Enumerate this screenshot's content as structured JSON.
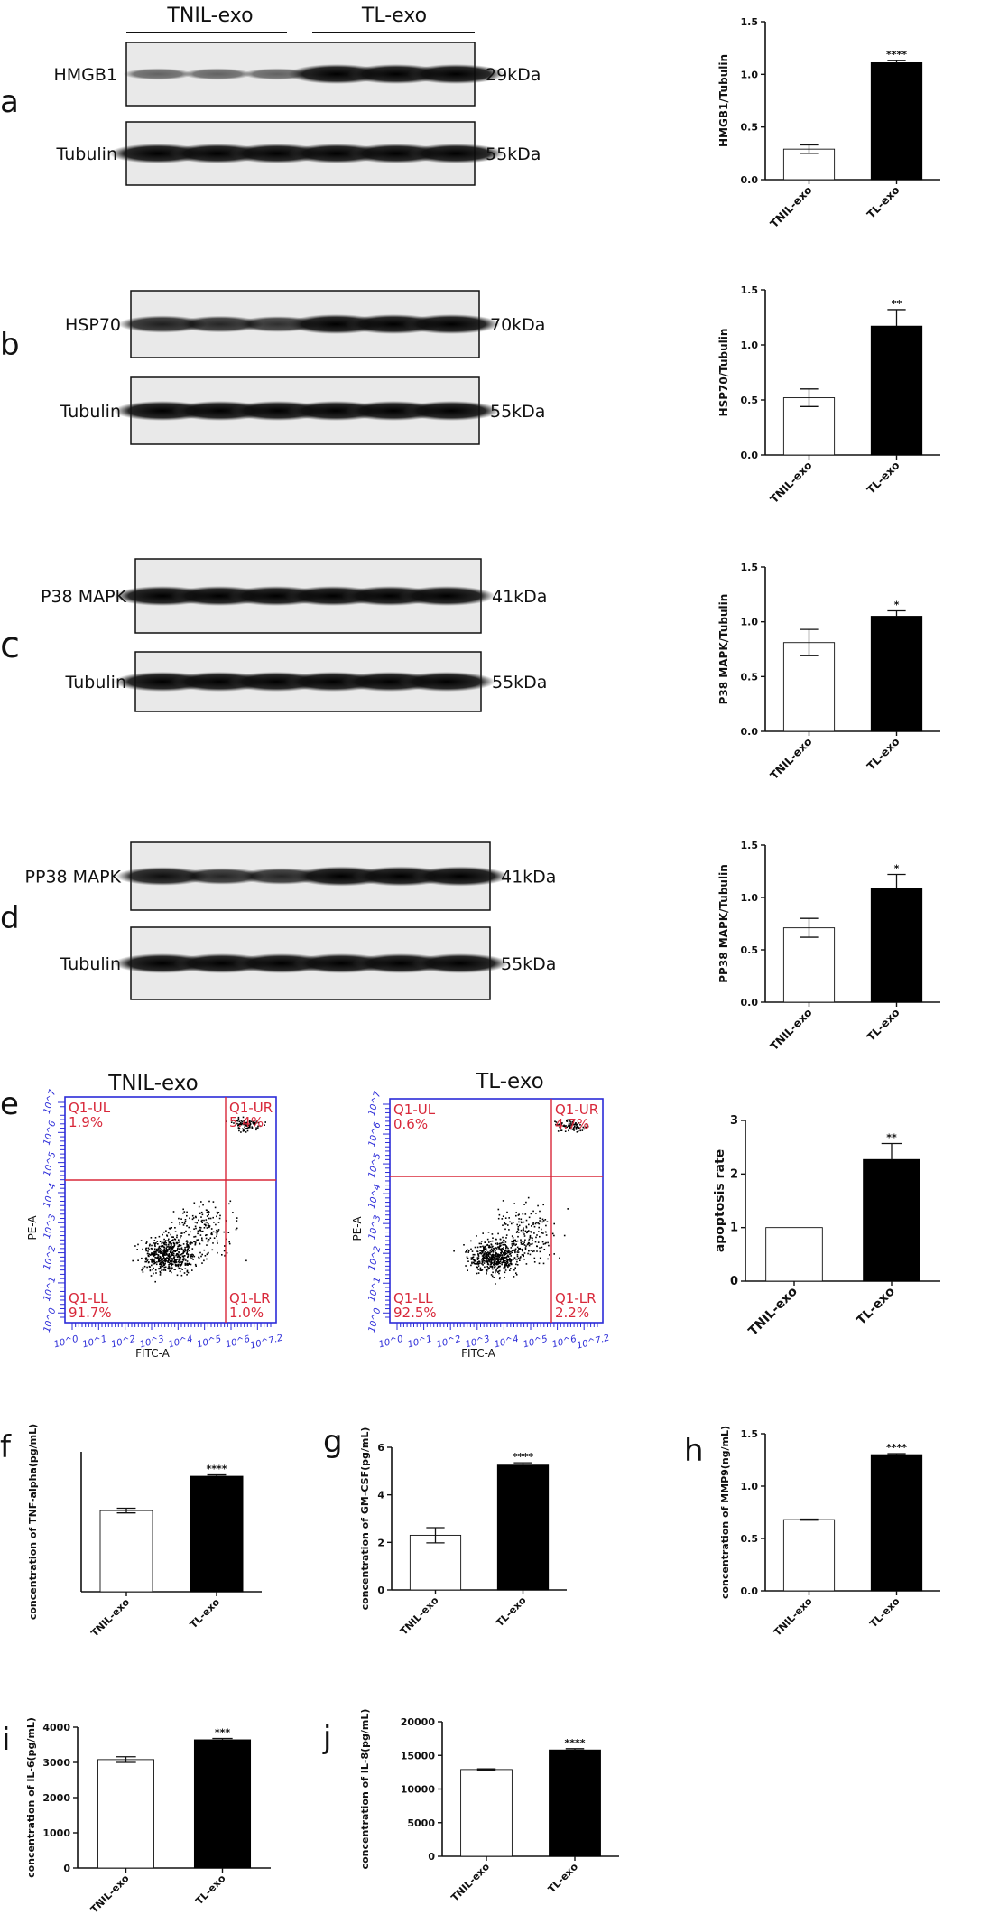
{
  "panels": {
    "a": {
      "letter": "a"
    },
    "b": {
      "letter": "b"
    },
    "c": {
      "letter": "c"
    },
    "d": {
      "letter": "d"
    },
    "e": {
      "letter": "e"
    },
    "f": {
      "letter": "f"
    },
    "g": {
      "letter": "g"
    },
    "h": {
      "letter": "h"
    },
    "i": {
      "letter": "i"
    },
    "j": {
      "letter": "j"
    }
  },
  "blot_group_labels": [
    "TNIL-exo",
    "TL-exo"
  ],
  "blots": [
    {
      "panel": "a",
      "protein": "HMGB1",
      "protein_kda": "29kDa",
      "loading": "Tubulin",
      "loading_kda": "55kDa",
      "band_strength": [
        0.35,
        0.35,
        0.35,
        1.0,
        1.0,
        1.0
      ],
      "loading_strength": [
        1,
        1,
        1,
        1,
        1,
        1
      ]
    },
    {
      "panel": "b",
      "protein": "HSP70",
      "protein_kda": "70kDa",
      "loading": "Tubulin",
      "loading_kda": "55kDa",
      "band_strength": [
        0.8,
        0.75,
        0.7,
        1.0,
        1.0,
        1.0
      ],
      "loading_strength": [
        1,
        1,
        1,
        1,
        1,
        1
      ]
    },
    {
      "panel": "c",
      "protein": "P38 MAPK",
      "protein_kda": "41kDa",
      "loading": "Tubulin",
      "loading_kda": "55kDa",
      "band_strength": [
        1,
        1,
        1,
        1,
        1,
        1
      ],
      "loading_strength": [
        1,
        1,
        1,
        1,
        1,
        1
      ]
    },
    {
      "panel": "d",
      "protein": "PP38 MAPK",
      "protein_kda": "41kDa",
      "loading": "Tubulin",
      "loading_kda": "55kDa",
      "band_strength": [
        0.9,
        0.75,
        0.75,
        1.0,
        1.0,
        1.0
      ],
      "loading_strength": [
        1,
        1,
        1,
        1,
        1,
        1
      ]
    }
  ],
  "flow": [
    {
      "title": "TNIL-exo",
      "ul": "Q1-UL",
      "ul_pct": "1.9%",
      "ur": "Q1-UR",
      "ur_pct": "5.4%",
      "ll": "Q1-LL",
      "ll_pct": "91.7%",
      "lr": "Q1-LR",
      "lr_pct": "1.0%",
      "xlabel": "FITC-A",
      "ylabel": "PE-A",
      "ticks_x": [
        "10^0",
        "10^1",
        "10^2",
        "10^3",
        "10^4",
        "10^5",
        "10^6",
        "10^7.2"
      ],
      "ticks_y": [
        "10^0",
        "10^1",
        "10^2",
        "10^3",
        "10^4",
        "10^5",
        "10^6",
        "10^7"
      ]
    },
    {
      "title": "TL-exo",
      "ul": "Q1-UL",
      "ul_pct": "0.6%",
      "ur": "Q1-UR",
      "ur_pct": "4.7%",
      "ll": "Q1-LL",
      "ll_pct": "92.5%",
      "lr": "Q1-LR",
      "lr_pct": "2.2%",
      "xlabel": "FITC-A",
      "ylabel": "PE-A",
      "ticks_x": [
        "10^0",
        "10^1",
        "10^2",
        "10^3",
        "10^4",
        "10^5",
        "10^6",
        "10^7.2"
      ],
      "ticks_y": [
        "10^0",
        "10^1",
        "10^2",
        "10^3",
        "10^4",
        "10^5",
        "10^6",
        "10^7"
      ]
    }
  ],
  "chart_data": [
    {
      "panel": "a",
      "type": "bar",
      "categories": [
        "TNIL-exo",
        "TL-exo"
      ],
      "values": [
        0.29,
        1.11
      ],
      "errors": [
        0.04,
        0.02
      ],
      "ylabel": "HMGB1/Tubulin",
      "ylim": [
        0,
        1.5
      ],
      "yticks": [
        "0.0",
        "0.5",
        "1.0",
        "1.5"
      ],
      "significance": "****"
    },
    {
      "panel": "b",
      "type": "bar",
      "categories": [
        "TNIL-exo",
        "TL-exo"
      ],
      "values": [
        0.52,
        1.17
      ],
      "errors": [
        0.08,
        0.15
      ],
      "ylabel": "HSP70/Tubulin",
      "ylim": [
        0,
        1.5
      ],
      "yticks": [
        "0.0",
        "0.5",
        "1.0",
        "1.5"
      ],
      "significance": "**"
    },
    {
      "panel": "c",
      "type": "bar",
      "categories": [
        "TNIL-exo",
        "TL-exo"
      ],
      "values": [
        0.81,
        1.05
      ],
      "errors": [
        0.12,
        0.05
      ],
      "ylabel": "P38 MAPK/Tubulin",
      "ylim": [
        0,
        1.5
      ],
      "yticks": [
        "0.0",
        "0.5",
        "1.0",
        "1.5"
      ],
      "significance": "*"
    },
    {
      "panel": "d",
      "type": "bar",
      "categories": [
        "TNIL-exo",
        "TL-exo"
      ],
      "values": [
        0.71,
        1.09
      ],
      "errors": [
        0.09,
        0.13
      ],
      "ylabel": "PP38 MAPK/Tubulin",
      "ylim": [
        0,
        1.5
      ],
      "yticks": [
        "0.0",
        "0.5",
        "1.0",
        "1.5"
      ],
      "significance": "*"
    },
    {
      "panel": "e",
      "type": "bar",
      "categories": [
        "TNIL-exo",
        "TL-exo"
      ],
      "values": [
        1.0,
        2.27
      ],
      "errors": [
        0,
        0.3
      ],
      "ylabel": "apoptosis rate",
      "ylim": [
        0,
        3
      ],
      "yticks": [
        "0",
        "1",
        "2",
        "3"
      ],
      "significance": "**"
    },
    {
      "panel": "f",
      "type": "bar",
      "categories": [
        "TNIL-exo",
        "TL-exo"
      ],
      "values": [
        3.48,
        4.95
      ],
      "errors": [
        0.1,
        0.06
      ],
      "ylabel": "concentration of TNF-alpha(pg/mL)",
      "ylim": [
        0,
        6
      ],
      "yticks": [],
      "significance": "****"
    },
    {
      "panel": "g",
      "type": "bar",
      "categories": [
        "TNIL-exo",
        "TL-exo"
      ],
      "values": [
        2.3,
        5.25
      ],
      "errors": [
        0.32,
        0.1
      ],
      "ylabel": "concentration of GM-CSF(pg/mL)",
      "ylim": [
        0,
        6
      ],
      "yticks": [
        "0",
        "2",
        "4",
        "6"
      ],
      "significance": "****"
    },
    {
      "panel": "h",
      "type": "bar",
      "categories": [
        "TNIL-exo",
        "TL-exo"
      ],
      "values": [
        0.68,
        1.3
      ],
      "errors": [
        0.005,
        0.01
      ],
      "ylabel": "concentration of MMP9(ng/mL)",
      "ylim": [
        0,
        1.5
      ],
      "yticks": [
        "0.0",
        "0.5",
        "1.0",
        "1.5"
      ],
      "significance": "****"
    },
    {
      "panel": "i",
      "type": "bar",
      "categories": [
        "TNIL-exo",
        "TL-exo"
      ],
      "values": [
        3080,
        3640
      ],
      "errors": [
        80,
        40
      ],
      "ylabel": "concentration of IL-6(pg/mL)",
      "ylim": [
        0,
        4000
      ],
      "yticks": [
        "0",
        "1000",
        "2000",
        "3000",
        "4000"
      ],
      "significance": "***"
    },
    {
      "panel": "j",
      "type": "bar",
      "categories": [
        "TNIL-exo",
        "TL-exo"
      ],
      "values": [
        12900,
        15800
      ],
      "errors": [
        100,
        200
      ],
      "ylabel": "concentration of IL-8(pg/mL)",
      "ylim": [
        0,
        20000
      ],
      "yticks": [
        "0",
        "5000",
        "10000",
        "15000",
        "20000"
      ],
      "significance": "****"
    }
  ]
}
